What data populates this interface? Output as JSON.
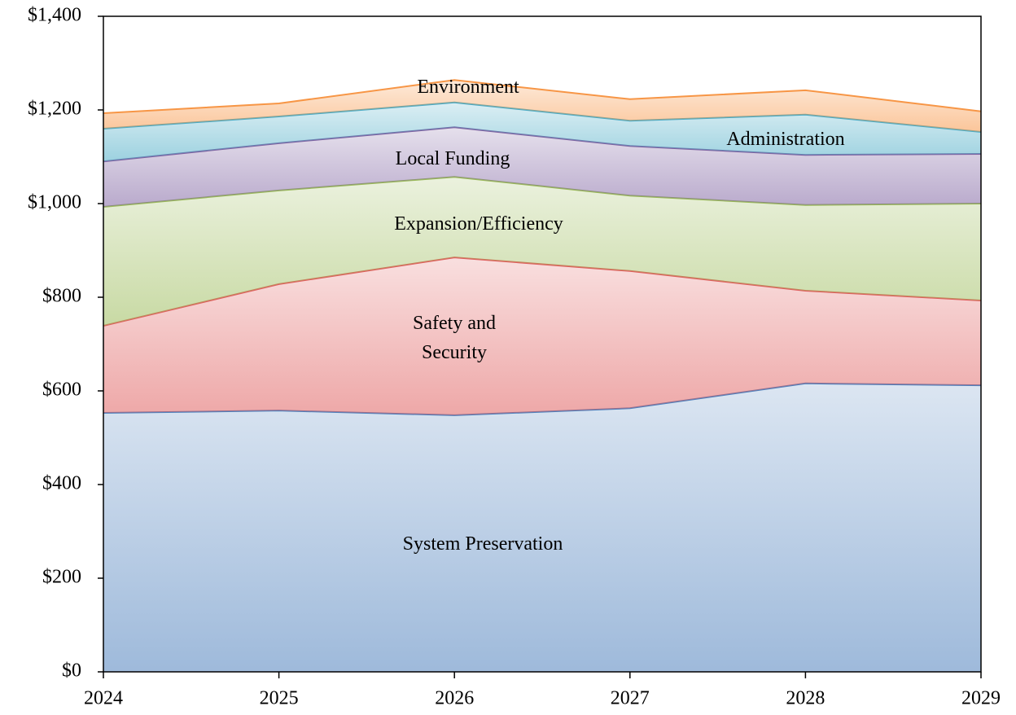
{
  "chart_data": {
    "type": "stacked_area",
    "categories": [
      "2024",
      "2025",
      "2026",
      "2027",
      "2028",
      "2029"
    ],
    "series": [
      {
        "name": "System Preservation",
        "color": "#4f81bd",
        "values": [
          553,
          558,
          548,
          563,
          616,
          612
        ]
      },
      {
        "name": "Safety and Security",
        "color": "#e06060",
        "values": [
          186,
          270,
          337,
          293,
          198,
          181
        ]
      },
      {
        "name": "Expansion/Efficiency",
        "color": "#9bbb59",
        "values": [
          254,
          200,
          172,
          161,
          183,
          207
        ]
      },
      {
        "name": "Local Funding",
        "color": "#8064a2",
        "values": [
          97,
          101,
          106,
          106,
          107,
          106
        ]
      },
      {
        "name": "Administration",
        "color": "#4bacc6",
        "values": [
          70,
          57,
          53,
          54,
          86,
          47
        ]
      },
      {
        "name": "Environment",
        "color": "#f79646",
        "values": [
          33,
          28,
          48,
          46,
          52,
          44
        ]
      }
    ],
    "ylim": [
      0,
      1400
    ],
    "yticks": [
      {
        "value": 0,
        "label": "$0"
      },
      {
        "value": 200,
        "label": "$200"
      },
      {
        "value": 400,
        "label": "$400"
      },
      {
        "value": 600,
        "label": "$600"
      },
      {
        "value": 800,
        "label": "$800"
      },
      {
        "value": 1000,
        "label": "$1,000"
      },
      {
        "value": 1200,
        "label": "$1,200"
      },
      {
        "value": 1400,
        "label": "$1,400"
      }
    ]
  }
}
